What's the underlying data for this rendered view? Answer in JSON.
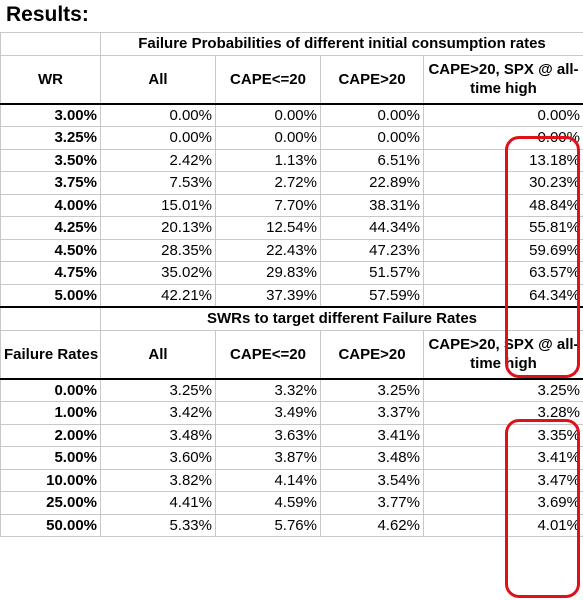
{
  "title": "Results:",
  "section1": {
    "span_title": "Failure Probabilities of different initial consumption rates",
    "headers": [
      "WR",
      "All",
      "CAPE<=20",
      "CAPE>20",
      "CAPE>20, SPX @ all-time high"
    ],
    "rows": [
      [
        "3.00%",
        "0.00%",
        "0.00%",
        "0.00%",
        "0.00%"
      ],
      [
        "3.25%",
        "0.00%",
        "0.00%",
        "0.00%",
        "0.00%"
      ],
      [
        "3.50%",
        "2.42%",
        "1.13%",
        "6.51%",
        "13.18%"
      ],
      [
        "3.75%",
        "7.53%",
        "2.72%",
        "22.89%",
        "30.23%"
      ],
      [
        "4.00%",
        "15.01%",
        "7.70%",
        "38.31%",
        "48.84%"
      ],
      [
        "4.25%",
        "20.13%",
        "12.54%",
        "44.34%",
        "55.81%"
      ],
      [
        "4.50%",
        "28.35%",
        "22.43%",
        "47.23%",
        "59.69%"
      ],
      [
        "4.75%",
        "35.02%",
        "29.83%",
        "51.57%",
        "63.57%"
      ],
      [
        "5.00%",
        "42.21%",
        "37.39%",
        "57.59%",
        "64.34%"
      ]
    ]
  },
  "section2": {
    "span_title": "SWRs to target different Failure Rates",
    "headers": [
      "Failure Rates",
      "All",
      "CAPE<=20",
      "CAPE>20",
      "CAPE>20, SPX @ all-time high"
    ],
    "rows": [
      [
        "0.00%",
        "3.25%",
        "3.32%",
        "3.25%",
        "3.25%"
      ],
      [
        "1.00%",
        "3.42%",
        "3.49%",
        "3.37%",
        "3.28%"
      ],
      [
        "2.00%",
        "3.48%",
        "3.63%",
        "3.41%",
        "3.35%"
      ],
      [
        "5.00%",
        "3.60%",
        "3.87%",
        "3.48%",
        "3.41%"
      ],
      [
        "10.00%",
        "3.82%",
        "4.14%",
        "3.54%",
        "3.47%"
      ],
      [
        "25.00%",
        "4.41%",
        "4.59%",
        "3.77%",
        "3.69%"
      ],
      [
        "50.00%",
        "5.33%",
        "5.76%",
        "4.62%",
        "4.01%"
      ]
    ]
  },
  "highlight_color": "#e0101a"
}
